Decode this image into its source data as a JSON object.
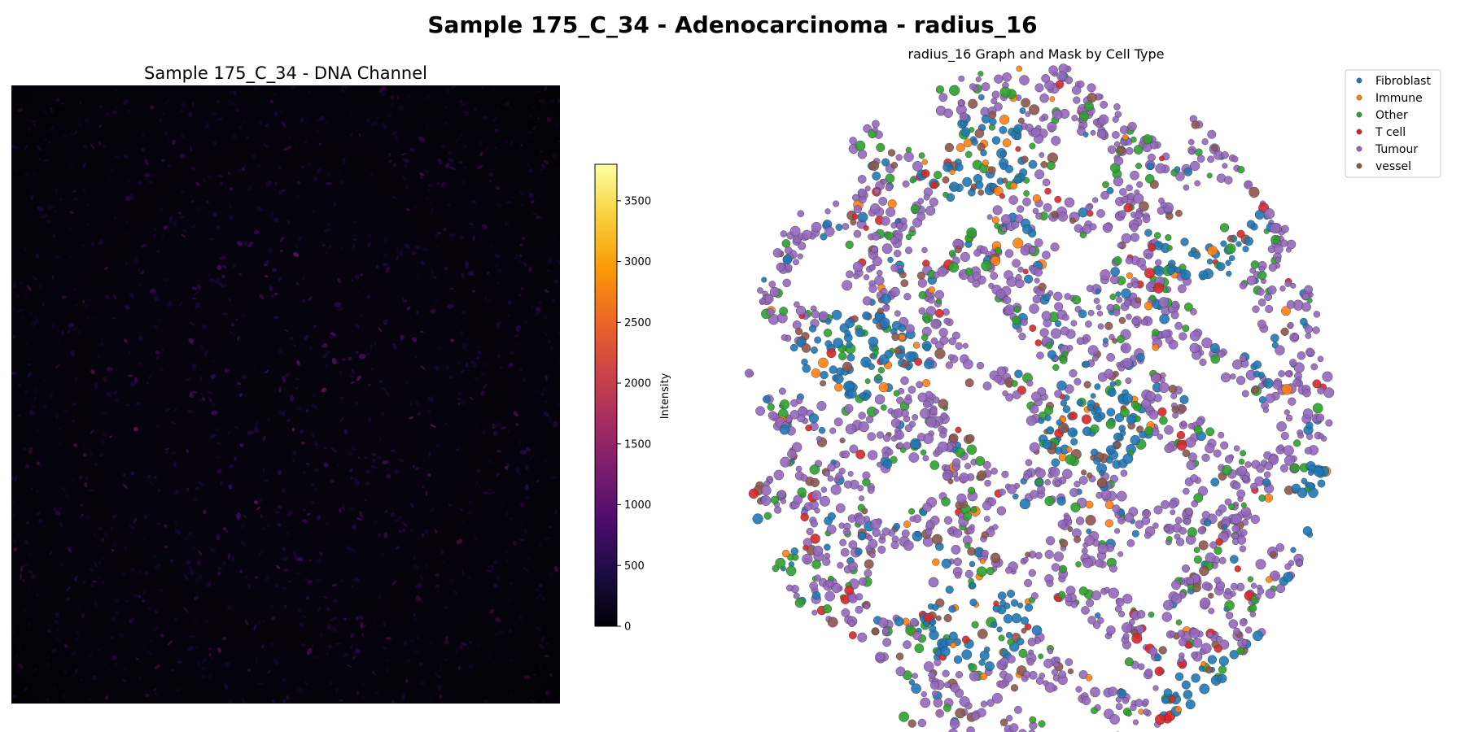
{
  "figure": {
    "suptitle": "Sample 175_C_34 - Adenocarcinoma - radius_16"
  },
  "chart_data": [
    {
      "type": "heatmap",
      "title": "Sample 175_C_34 - DNA Channel",
      "colormap": "inferno",
      "axis": "off",
      "colorbar": {
        "label": "Intensity",
        "range": [
          0,
          3800
        ],
        "ticks": [
          0,
          500,
          1000,
          1500,
          2000,
          2500,
          3000,
          3500
        ],
        "tick_labels": [
          "0",
          "500",
          "1000",
          "1500",
          "2000",
          "2500",
          "3000",
          "3500"
        ],
        "colors": [
          "#000004",
          "#1b0c41",
          "#4a0c6b",
          "#781c6d",
          "#a52c60",
          "#cf4446",
          "#ed6925",
          "#fb9b06",
          "#f7d13d",
          "#fcffa4"
        ]
      }
    },
    {
      "type": "scatter",
      "title": "radius_16 Graph and Mask by Cell Type",
      "axis": "off",
      "legend": {
        "placement": "top-right",
        "entries": [
          {
            "label": "Fibroblast",
            "color": "#1f77b4"
          },
          {
            "label": "Immune",
            "color": "#ff7f0e"
          },
          {
            "label": "Other",
            "color": "#2ca02c"
          },
          {
            "label": "T cell",
            "color": "#d62728"
          },
          {
            "label": "Tumour",
            "color": "#9467bd"
          },
          {
            "label": "vessel",
            "color": "#8c564b"
          }
        ]
      }
    }
  ]
}
